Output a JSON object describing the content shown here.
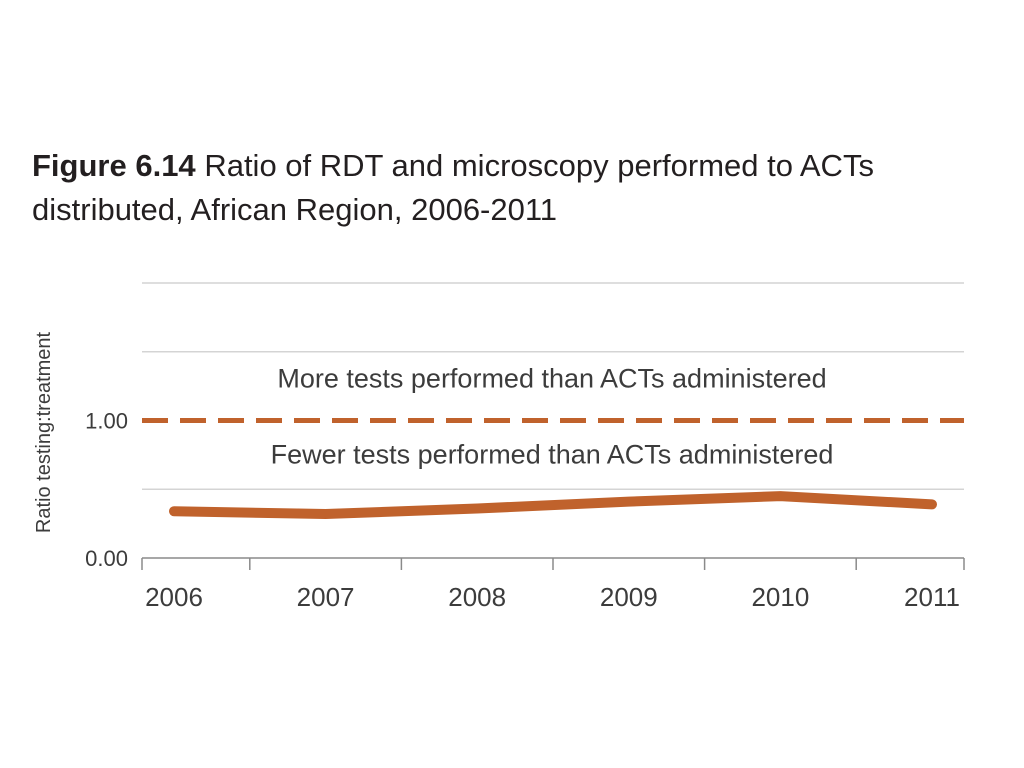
{
  "title": {
    "figure_number": "Figure 6.14",
    "text": "Ratio of RDT and microscopy performed to ACTs distributed, African Region, 2006-2011"
  },
  "chart_data": {
    "type": "line",
    "x": [
      "2006",
      "2007",
      "2008",
      "2009",
      "2010",
      "2011"
    ],
    "series": [
      {
        "values": [
          0.34,
          0.32,
          0.36,
          0.41,
          0.45,
          0.39
        ],
        "color": "#c0622c"
      }
    ],
    "reference_line": {
      "value": 1.0,
      "style": "dashed",
      "color": "#c0622c"
    },
    "y_ticks": [
      {
        "value": 0.0,
        "label": "0.00"
      },
      {
        "value": 1.0,
        "label": "1.00"
      }
    ],
    "ylim": [
      0,
      2.0
    ],
    "gridlines": [
      0.5,
      1.5,
      2.0
    ],
    "ylabel": "Ratio  testing:treatment",
    "xlabel": "",
    "annotations": {
      "above": "More tests performed than ACTs administered",
      "below": "Fewer tests performed than ACTs administered"
    },
    "grid": true,
    "legend": "none"
  }
}
